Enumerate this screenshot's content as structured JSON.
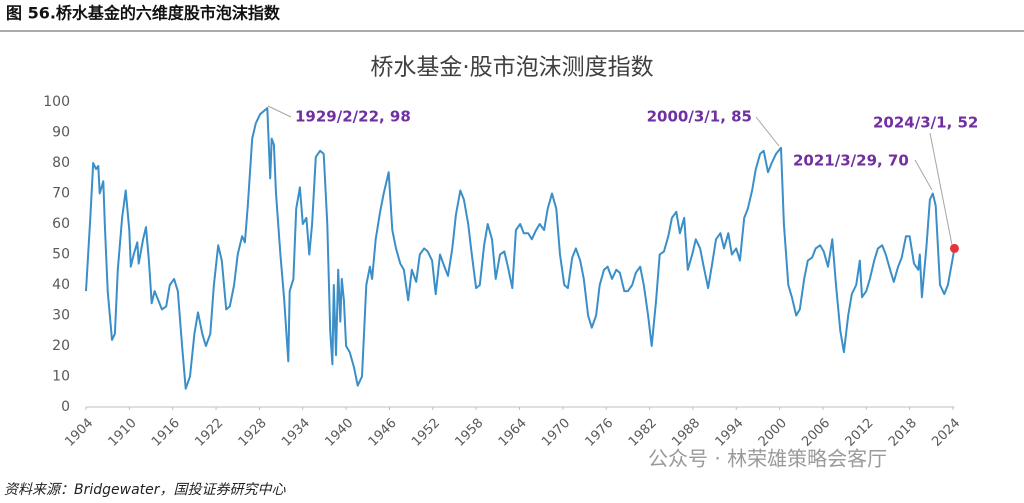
{
  "header": "图 56.桥水基金的六维度股市泡沫指数",
  "source": "资料来源：Bridgewater，国投证券研究中心",
  "watermark": "公众号 · 林荣雄策略会客厅",
  "chart_data": {
    "type": "line",
    "title": "桥水基金·股市泡沫测度指数",
    "color": "#3a8fc9",
    "marker_color": "#e8333a",
    "grid": false,
    "xlim": [
      1904,
      2024.2
    ],
    "xticks": [
      1904,
      1910,
      1916,
      1922,
      1928,
      1934,
      1940,
      1946,
      1952,
      1958,
      1964,
      1970,
      1976,
      1982,
      1988,
      1994,
      2000,
      2006,
      2012,
      2018,
      2024
    ],
    "ylim": [
      0,
      100
    ],
    "yticks": [
      0,
      10,
      20,
      30,
      40,
      50,
      60,
      70,
      80,
      90,
      100
    ],
    "annotations": [
      "1929/2/22, 98",
      "2000/3/1, 85",
      "2021/3/29, 70",
      "2024/3/1, 52"
    ],
    "x": [
      1904.0,
      1904.6,
      1905.0,
      1905.4,
      1905.7,
      1905.9,
      1906.4,
      1906.6,
      1907.0,
      1907.6,
      1908.0,
      1908.4,
      1909.0,
      1909.5,
      1910.0,
      1910.2,
      1910.6,
      1911.1,
      1911.3,
      1911.9,
      1912.3,
      1912.7,
      1913.1,
      1913.5,
      1914.0,
      1914.5,
      1915.1,
      1915.6,
      1916.2,
      1916.7,
      1917.3,
      1917.8,
      1918.4,
      1919.0,
      1919.5,
      1920.1,
      1920.6,
      1921.2,
      1921.7,
      1922.3,
      1922.8,
      1923.4,
      1923.9,
      1924.5,
      1925.0,
      1925.6,
      1926.0,
      1926.4,
      1927.0,
      1927.5,
      1928.1,
      1929.1,
      1929.5,
      1929.7,
      1930.0,
      1930.3,
      1930.9,
      1931.4,
      1932.0,
      1932.2,
      1932.7,
      1933.1,
      1933.6,
      1934.0,
      1934.5,
      1934.9,
      1935.3,
      1935.8,
      1936.4,
      1936.9,
      1937.4,
      1937.8,
      1938.1,
      1938.3,
      1938.6,
      1938.9,
      1939.2,
      1939.4,
      1939.7,
      1940.0,
      1940.5,
      1941.1,
      1941.6,
      1942.2,
      1942.8,
      1943.3,
      1943.6,
      1944.1,
      1944.7,
      1945.2,
      1945.9,
      1946.4,
      1946.9,
      1947.5,
      1948.0,
      1948.6,
      1949.1,
      1949.7,
      1950.2,
      1950.8,
      1951.3,
      1951.9,
      1952.4,
      1953.0,
      1953.6,
      1954.1,
      1954.7,
      1955.2,
      1955.8,
      1956.3,
      1956.9,
      1957.4,
      1958.0,
      1958.5,
      1959.1,
      1959.6,
      1960.2,
      1960.7,
      1961.3,
      1961.9,
      1962.4,
      1963.0,
      1963.5,
      1964.1,
      1964.6,
      1965.2,
      1965.7,
      1966.3,
      1966.8,
      1967.4,
      1967.9,
      1968.5,
      1969.1,
      1969.6,
      1970.2,
      1970.7,
      1971.3,
      1971.8,
      1972.4,
      1972.9,
      1973.5,
      1974.0,
      1974.6,
      1975.1,
      1975.7,
      1976.2,
      1976.8,
      1977.4,
      1977.9,
      1978.5,
      1979.0,
      1979.6,
      1980.1,
      1980.7,
      1981.2,
      1981.8,
      1982.3,
      1982.9,
      1983.4,
      1984.0,
      1984.6,
      1985.1,
      1985.7,
      1986.2,
      1986.8,
      1987.3,
      1987.9,
      1988.4,
      1989.0,
      1989.5,
      1990.1,
      1990.6,
      1991.2,
      1991.8,
      1992.3,
      1992.9,
      1993.4,
      1994.0,
      1994.5,
      1995.1,
      1995.6,
      1996.2,
      1996.7,
      1997.3,
      1997.8,
      1998.4,
      1998.9,
      1999.5,
      2000.2,
      2000.6,
      2001.2,
      2001.7,
      2002.3,
      2002.8,
      2003.4,
      2003.9,
      2004.5,
      2005.0,
      2005.6,
      2006.1,
      2006.7,
      2007.3,
      2007.8,
      2008.4,
      2008.9,
      2009.5,
      2010.0,
      2010.6,
      2011.1,
      2011.4,
      2012.0,
      2012.5,
      2013.1,
      2013.6,
      2014.2,
      2014.7,
      2015.3,
      2015.8,
      2016.4,
      2016.9,
      2017.5,
      2018.0,
      2018.6,
      2019.2,
      2019.4,
      2019.7,
      2020.3,
      2020.8,
      2021.2,
      2021.6,
      2022.2,
      2022.8,
      2023.3,
      2023.9,
      2024.2
    ],
    "values": [
      38,
      62,
      80,
      78,
      79,
      70,
      74,
      60,
      38,
      22,
      24,
      45,
      62,
      71,
      58,
      46,
      50,
      54,
      47,
      55,
      59,
      48,
      34,
      38,
      35,
      32,
      33,
      40,
      42,
      38,
      20,
      6,
      10,
      24,
      31,
      24,
      20,
      24,
      40,
      53,
      48,
      32,
      33,
      40,
      50,
      56,
      54,
      66,
      88,
      93,
      96,
      98,
      75,
      88,
      86,
      70,
      50,
      36,
      15,
      38,
      42,
      65,
      72,
      60,
      62,
      50,
      60,
      82,
      84,
      83,
      60,
      25,
      14,
      40,
      17,
      45,
      28,
      42,
      35,
      20,
      18,
      13,
      7,
      10,
      40,
      46,
      42,
      55,
      64,
      70,
      77,
      58,
      52,
      47,
      45,
      35,
      45,
      41,
      50,
      52,
      51,
      48,
      37,
      50,
      46,
      43,
      52,
      63,
      71,
      68,
      60,
      50,
      39,
      40,
      53,
      60,
      55,
      42,
      50,
      51,
      46,
      39,
      58,
      60,
      57,
      57,
      55,
      58,
      60,
      58,
      65,
      70,
      65,
      50,
      40,
      39,
      49,
      52,
      48,
      42,
      30,
      26,
      30,
      40,
      45,
      46,
      42,
      45,
      44,
      38,
      38,
      40,
      44,
      46,
      40,
      30,
      20,
      35,
      50,
      51,
      56,
      62,
      64,
      57,
      62,
      45,
      50,
      55,
      52,
      46,
      39,
      46,
      55,
      57,
      52,
      57,
      50,
      52,
      48,
      62,
      65,
      71,
      78,
      83,
      84,
      77,
      80,
      83,
      85,
      60,
      40,
      36,
      30,
      32,
      42,
      48,
      49,
      52,
      53,
      51,
      46,
      55,
      40,
      25,
      18,
      30,
      37,
      40,
      48,
      36,
      38,
      42,
      48,
      52,
      53,
      50,
      45,
      41,
      46,
      49,
      56,
      56,
      47,
      45,
      50,
      36,
      52,
      68,
      70,
      66,
      40,
      37,
      40,
      48,
      52
    ]
  }
}
